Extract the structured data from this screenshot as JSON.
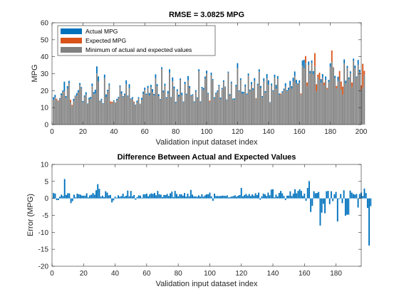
{
  "chart_data": [
    {
      "type": "bar",
      "title": "RMSE = 3.0825 MPG",
      "xlabel": "Validation input dataset index",
      "ylabel": "MPG",
      "xlim": [
        0,
        200
      ],
      "ylim": [
        0,
        60
      ],
      "xticks": [
        "0",
        "20",
        "40",
        "60",
        "80",
        "100",
        "120",
        "140",
        "160",
        "180",
        "200"
      ],
      "yticks": [
        "0",
        "10",
        "20",
        "30",
        "40",
        "50",
        "60"
      ],
      "legend_position": "top-left",
      "colors": {
        "actual": "#0072BD",
        "expected": "#D95319",
        "minimum": "#808080"
      },
      "series": [
        {
          "name": "Actual MPG",
          "values": [
            16.2,
            17.5,
            14.8,
            13.7,
            15.6,
            18.4,
            20.1,
            25.3,
            16.8,
            22.7,
            25.8,
            13.2,
            10.8,
            15.2,
            17.1,
            18.6,
            20.3,
            24.5,
            22.1,
            13.9,
            17.2,
            19.1,
            12.4,
            15.8,
            16.3,
            24.2,
            19.2,
            20.6,
            34.3,
            28.4,
            14.1,
            15.2,
            12.6,
            29.5,
            17.8,
            20.5,
            24.2,
            12.4,
            12.8,
            14.3,
            13.1,
            15.2,
            16.3,
            23.1,
            19.6,
            16.8,
            18.2,
            26.1,
            17.1,
            23.8,
            15.4,
            16.2,
            13.2,
            11.8,
            14.1,
            16.2,
            12.3,
            15.8,
            19.4,
            21.8,
            18.2,
            22.8,
            18.6,
            23.4,
            20.9,
            18.1,
            29.6,
            23.8,
            17.9,
            15.1,
            33.8,
            20.1,
            24.1,
            16.1,
            19.8,
            32.6,
            16.2,
            27.8,
            22.4,
            13.4,
            20.8,
            17.6,
            27.2,
            18.8,
            13.6,
            25.2,
            18.2,
            28.6,
            22.7,
            17.4,
            17.9,
            13.7,
            20.3,
            16.1,
            32.6,
            13.7,
            22.2,
            21.6,
            28.3,
            31.8,
            18.7,
            13.4,
            30.6,
            26.8,
            16.1,
            18.8,
            20.1,
            23.4,
            15.9,
            21.6,
            26.1,
            22.4,
            14.8,
            31.2,
            17.9,
            25.3,
            15.3,
            15.4,
            23.4,
            36.2,
            20.2,
            27.3,
            19.4,
            19.2,
            23.6,
            18.3,
            30.1,
            20.6,
            25.1,
            21.4,
            27.4,
            15.2,
            24.1,
            32.6,
            22.8,
            16.8,
            27.3,
            19.7,
            29.8,
            26.1,
            13.2,
            24.2,
            20.2,
            29.4,
            23.4,
            28.6,
            18.3,
            17.8,
            19.6,
            21.2,
            24.4,
            20.3,
            21.8,
            25.8,
            22.7,
            27.6,
            31.3,
            26.4,
            24.3,
            26.1,
            17.6,
            37.8,
            38.2,
            36.4,
            22.6,
            37.2,
            31.6,
            37.8,
            31.5,
            34.1,
            19.6,
            27.8,
            26.2,
            26.8,
            29.8,
            23.1,
            28.4,
            20.8,
            26.3,
            36.1,
            36.9,
            33.6,
            28.7,
            21.4,
            28.2,
            26.5,
            20.6,
            17.6,
            38.4,
            25.9,
            34.6,
            27.8,
            31.4,
            22.1,
            38.9,
            34.8,
            28.3,
            38.1,
            32.3,
            20.3,
            21.9,
            29.4
          ]
        },
        {
          "name": "Expected MPG",
          "values": [
            14.6,
            16.1,
            15.3,
            14.2,
            15.1,
            17.3,
            19.4,
            19.6,
            15.8,
            21.2,
            24.3,
            14.6,
            11.6,
            14.1,
            16.8,
            17.2,
            19.1,
            23.4,
            21.3,
            13.1,
            16.4,
            17.6,
            12.1,
            14.9,
            15.2,
            22.6,
            18.1,
            18.2,
            30.1,
            25.6,
            13.6,
            14.4,
            12.2,
            27.4,
            16.1,
            19.6,
            23.2,
            13.6,
            13.4,
            13.8,
            12.9,
            14.3,
            15.8,
            22.4,
            18.2,
            16.3,
            17.4,
            23.8,
            16.5,
            21.6,
            14.8,
            15.2,
            13.6,
            11.4,
            13.2,
            15.4,
            12.1,
            14.6,
            18.2,
            20.4,
            17.6,
            21.6,
            17.1,
            22.1,
            19.3,
            17.2,
            27.4,
            22.6,
            16.8,
            14.7,
            32.8,
            19.1,
            22.8,
            15.4,
            18.3,
            30.6,
            15.8,
            25.6,
            21.1,
            12.8,
            19.6,
            16.4,
            26.4,
            17.2,
            13.1,
            23.8,
            17.6,
            26.1,
            21.6,
            16.8,
            17.3,
            13.2,
            19.4,
            15.6,
            31.4,
            13.2,
            21.3,
            20.4,
            27.1,
            30.1,
            18.1,
            14.1,
            29.2,
            26.1,
            15.4,
            18.1,
            19.4,
            22.6,
            15.1,
            20.9,
            25.2,
            22.1,
            14.4,
            30.6,
            17.2,
            24.4,
            14.8,
            14.6,
            22.4,
            33.1,
            19.6,
            26.3,
            18.1,
            18.4,
            22.3,
            17.6,
            28.9,
            19.8,
            23.6,
            20.4,
            25.7,
            15.6,
            23.5,
            31.2,
            21.6,
            16.1,
            25.6,
            18.8,
            27.2,
            23.4,
            12.9,
            23.1,
            19.6,
            27.8,
            21.2,
            27.1,
            17.6,
            18.3,
            18.8,
            20.4,
            22.3,
            19.6,
            20.4,
            23.1,
            21.2,
            25.4,
            28.6,
            24.2,
            23.6,
            24.7,
            18.3,
            34.7,
            33.1,
            40.4,
            24.8,
            35.1,
            30.1,
            36.2,
            29.6,
            42.1,
            23.8,
            29.4,
            30.6,
            24.7,
            27.6,
            24.8,
            26.3,
            21.6,
            25.1,
            34.2,
            43.7,
            33.8,
            27.4,
            22.8,
            25.8,
            31.6,
            25.4,
            22.4,
            36.1,
            24.2,
            33.3,
            26.7,
            30.1,
            24.8,
            37.6,
            33.1,
            27.6,
            35.2,
            30.7,
            23.1,
            35.8,
            31.7
          ]
        }
      ]
    },
    {
      "type": "bar",
      "title": "Difference Between Actual and Expected Values",
      "xlabel": "Validation input dataset index",
      "ylabel": "Error (MPG)",
      "xlim": [
        0,
        196
      ],
      "ylim": [
        -20,
        10
      ],
      "xticks": [
        "0",
        "20",
        "40",
        "60",
        "80",
        "100",
        "120",
        "140",
        "160",
        "180"
      ],
      "yticks": [
        "-20",
        "-15",
        "-10",
        "-5",
        "0",
        "5",
        "10"
      ],
      "colors": {
        "error": "#0072BD"
      },
      "values": [
        1.6,
        1.4,
        -0.5,
        -0.5,
        0.5,
        1.1,
        0.7,
        5.7,
        1,
        1.5,
        1.5,
        -1.4,
        -0.8,
        1.1,
        0.3,
        1.4,
        1.2,
        1.1,
        0.8,
        0.8,
        0.8,
        1.5,
        0.3,
        0.9,
        1.1,
        1.6,
        1.1,
        2.4,
        4.2,
        2.8,
        0.5,
        0.8,
        0.4,
        2.1,
        1.7,
        0.9,
        1,
        -1.2,
        -0.6,
        0.5,
        0.2,
        0.9,
        0.5,
        0.7,
        1.4,
        0.5,
        0.8,
        2.3,
        0.6,
        2.2,
        0.6,
        1,
        -0.4,
        0.4,
        0.9,
        0.8,
        0.2,
        1.2,
        1.2,
        1.4,
        0.6,
        1.2,
        1.5,
        1.3,
        1.6,
        0.9,
        2.2,
        1.2,
        1.1,
        0.4,
        1,
        1,
        1.3,
        0.7,
        1.5,
        2,
        0.4,
        2.2,
        1.3,
        0.6,
        1.2,
        1.2,
        0.8,
        1.6,
        0.5,
        1.4,
        0.6,
        2.5,
        1.1,
        0.6,
        0.6,
        0.5,
        0.9,
        0.5,
        1.2,
        0.5,
        0.9,
        1.2,
        1.2,
        1.7,
        0.6,
        -0.7,
        1.4,
        0.7,
        0.7,
        0.7,
        0.7,
        0.8,
        0.8,
        0.7,
        0.9,
        0.3,
        0.4,
        0.6,
        0.7,
        0.9,
        0.5,
        0.8,
        1,
        3.1,
        0.6,
        1,
        1.3,
        0.8,
        1.3,
        0.7,
        1.2,
        0.8,
        1.5,
        1,
        1.7,
        -0.4,
        0.6,
        1.4,
        1.2,
        0.7,
        1.7,
        0.9,
        2.6,
        2.7,
        0.3,
        1.1,
        0.6,
        1.6,
        2.2,
        1.5,
        0.7,
        -0.5,
        0.8,
        0.8,
        2.1,
        0.7,
        1.4,
        2.7,
        1.5,
        2.2,
        2.7,
        2.2,
        0.7,
        1.4,
        -0.7,
        3.1,
        5.1,
        -4,
        -2.2,
        2.1,
        1.5,
        1.6,
        1.9,
        -8,
        -4.2,
        -1.6,
        -4.4,
        2.1,
        2.2,
        -1.7,
        2.1,
        -0.8,
        1.2,
        1.9,
        -6.8,
        -0.2,
        1.3,
        -1.4,
        2.4,
        -5.1,
        -4.8,
        -4.8,
        2.3,
        1.7,
        1.3,
        1.1,
        1.3,
        -2.7,
        1.3,
        1.7,
        0.7,
        2.9,
        1.6,
        -2.8,
        -13.9,
        -2.3
      ]
    }
  ],
  "legend": [
    {
      "label": "Actual MPG",
      "color": "#0072BD"
    },
    {
      "label": "Expected MPG",
      "color": "#D95319"
    },
    {
      "label": "Minimum of actual and expected values",
      "color": "#808080"
    }
  ]
}
